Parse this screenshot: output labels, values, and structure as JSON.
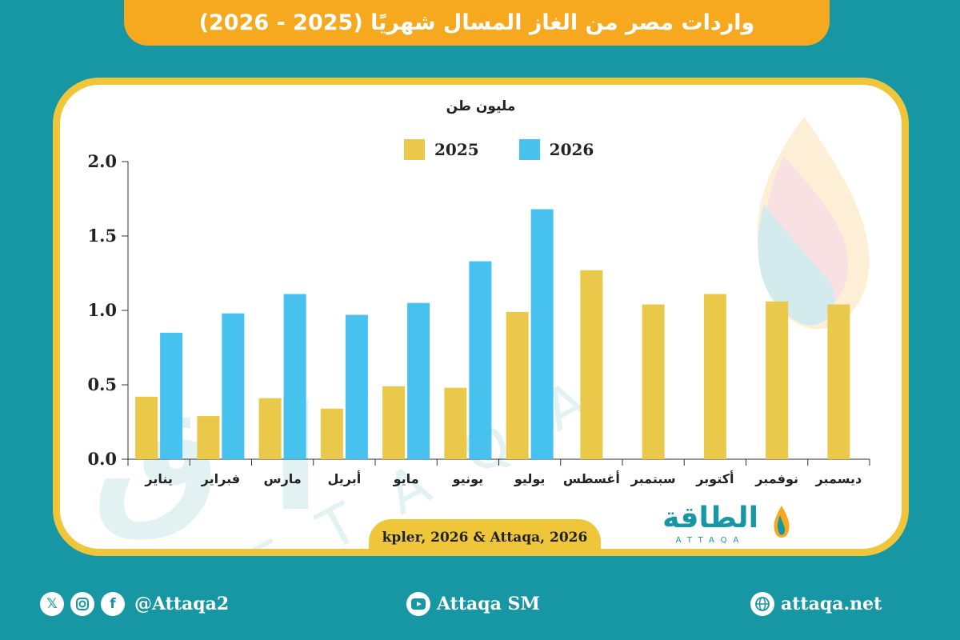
{
  "title": "واردات مصر من الغاز المسال شهريًا (2025 - 2026)",
  "unit_label": "مليون طن",
  "source": "kpler, 2026 & Attaqa, 2026",
  "logo": {
    "arabic": "الطاقة",
    "latin": "ATTAQA"
  },
  "footer": {
    "social_handle": "@Attaqa2",
    "youtube": "Attaqa SM",
    "website": "attaqa.net",
    "icons": [
      "x-icon",
      "instagram-icon",
      "facebook-icon",
      "youtube-icon",
      "globe-icon"
    ]
  },
  "colors": {
    "background": "#1797a3",
    "banner": "#f6a91f",
    "card_border": "#efc63a",
    "series_2025": "#e9c84a",
    "series_2026": "#47c1ee"
  },
  "chart_data": {
    "type": "bar",
    "categories": [
      "يناير",
      "فبراير",
      "مارس",
      "أبريل",
      "مايو",
      "يونيو",
      "يوليو",
      "أغسطس",
      "سبتمبر",
      "أكتوبر",
      "نوفمبر",
      "ديسمبر"
    ],
    "series": [
      {
        "name": "2025",
        "color": "#e9c84a",
        "values": [
          0.42,
          0.29,
          0.41,
          0.34,
          0.49,
          0.48,
          0.99,
          1.27,
          1.04,
          1.11,
          1.06,
          1.04
        ]
      },
      {
        "name": "2026",
        "color": "#47c1ee",
        "values": [
          0.85,
          0.98,
          1.11,
          0.97,
          1.05,
          1.33,
          1.68,
          null,
          null,
          null,
          null,
          null
        ]
      }
    ],
    "ylim": [
      0,
      2.0
    ],
    "yticks": [
      "0.0",
      "0.5",
      "1.0",
      "1.5",
      "2.0"
    ],
    "ylabel": "مليون طن",
    "legend": [
      "2025",
      "2026"
    ],
    "grid": false,
    "legend_position": "top-center"
  }
}
